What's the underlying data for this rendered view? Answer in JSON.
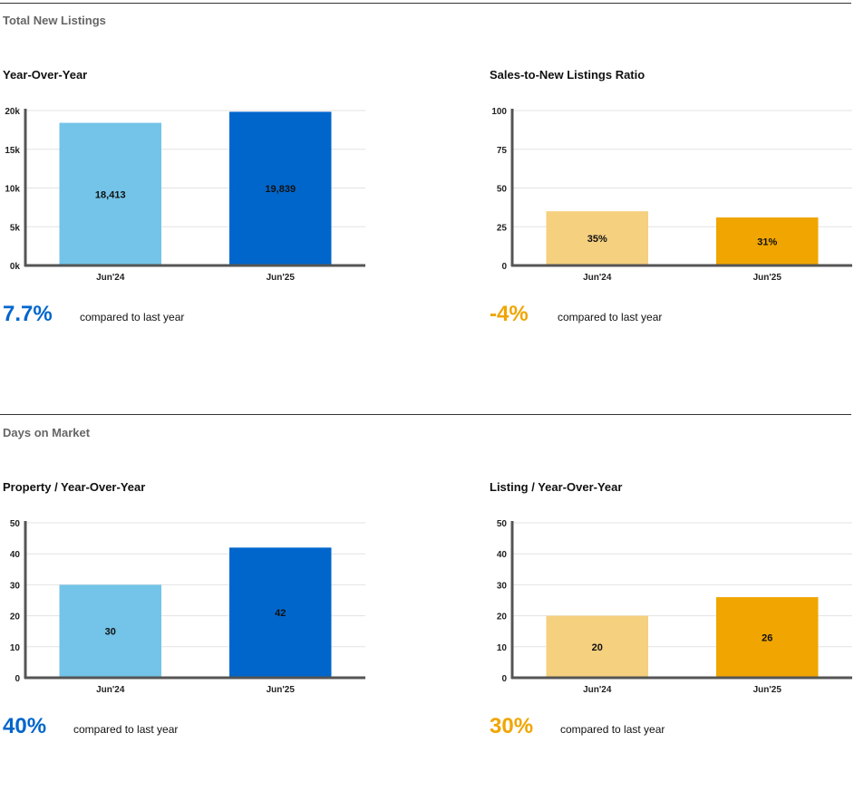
{
  "sections": [
    {
      "title": "Total New Listings"
    },
    {
      "title": "Days on Market"
    }
  ],
  "panels": [
    {
      "title": "Year-Over-Year",
      "change": "7.7%",
      "change_color": "#0066cc",
      "caption": "compared to last year"
    },
    {
      "title": "Sales-to-New Listings Ratio",
      "change": "-4%",
      "change_color": "#f0a500",
      "caption": "compared to last year"
    },
    {
      "title": "Property / Year-Over-Year",
      "change": "40%",
      "change_color": "#0066cc",
      "caption": "compared to last year"
    },
    {
      "title": "Listing / Year-Over-Year",
      "change": "30%",
      "change_color": "#f0a500",
      "caption": "compared to last year"
    }
  ],
  "chart_data": [
    {
      "type": "bar",
      "title": "Year-Over-Year",
      "categories": [
        "Jun'24",
        "Jun'25"
      ],
      "values": [
        18413,
        19839
      ],
      "data_labels": [
        "18,413",
        "19,839"
      ],
      "colors": [
        "#73c4e8",
        "#0066cc"
      ],
      "ylim": [
        0,
        20000
      ],
      "yticks": [
        0,
        5000,
        10000,
        15000,
        20000
      ],
      "ytick_labels": [
        "0k",
        "5k",
        "10k",
        "15k",
        "20k"
      ],
      "grid": true
    },
    {
      "type": "bar",
      "title": "Sales-to-New Listings Ratio",
      "categories": [
        "Jun'24",
        "Jun'25"
      ],
      "values": [
        35,
        31
      ],
      "data_labels": [
        "35%",
        "31%"
      ],
      "colors": [
        "#f5d07f",
        "#f0a500"
      ],
      "ylim": [
        0,
        100
      ],
      "yticks": [
        0,
        25,
        50,
        75,
        100
      ],
      "ytick_labels": [
        "0",
        "25",
        "50",
        "75",
        "100"
      ],
      "grid": true
    },
    {
      "type": "bar",
      "title": "Property / Year-Over-Year",
      "categories": [
        "Jun'24",
        "Jun'25"
      ],
      "values": [
        30,
        42
      ],
      "data_labels": [
        "30",
        "42"
      ],
      "colors": [
        "#73c4e8",
        "#0066cc"
      ],
      "ylim": [
        0,
        50
      ],
      "yticks": [
        0,
        10,
        20,
        30,
        40,
        50
      ],
      "ytick_labels": [
        "0",
        "10",
        "20",
        "30",
        "40",
        "50"
      ],
      "grid": true
    },
    {
      "type": "bar",
      "title": "Listing / Year-Over-Year",
      "categories": [
        "Jun'24",
        "Jun'25"
      ],
      "values": [
        20,
        26
      ],
      "data_labels": [
        "20",
        "26"
      ],
      "colors": [
        "#f5d07f",
        "#f0a500"
      ],
      "ylim": [
        0,
        50
      ],
      "yticks": [
        0,
        10,
        20,
        30,
        40,
        50
      ],
      "ytick_labels": [
        "0",
        "10",
        "20",
        "30",
        "40",
        "50"
      ],
      "grid": true
    }
  ]
}
